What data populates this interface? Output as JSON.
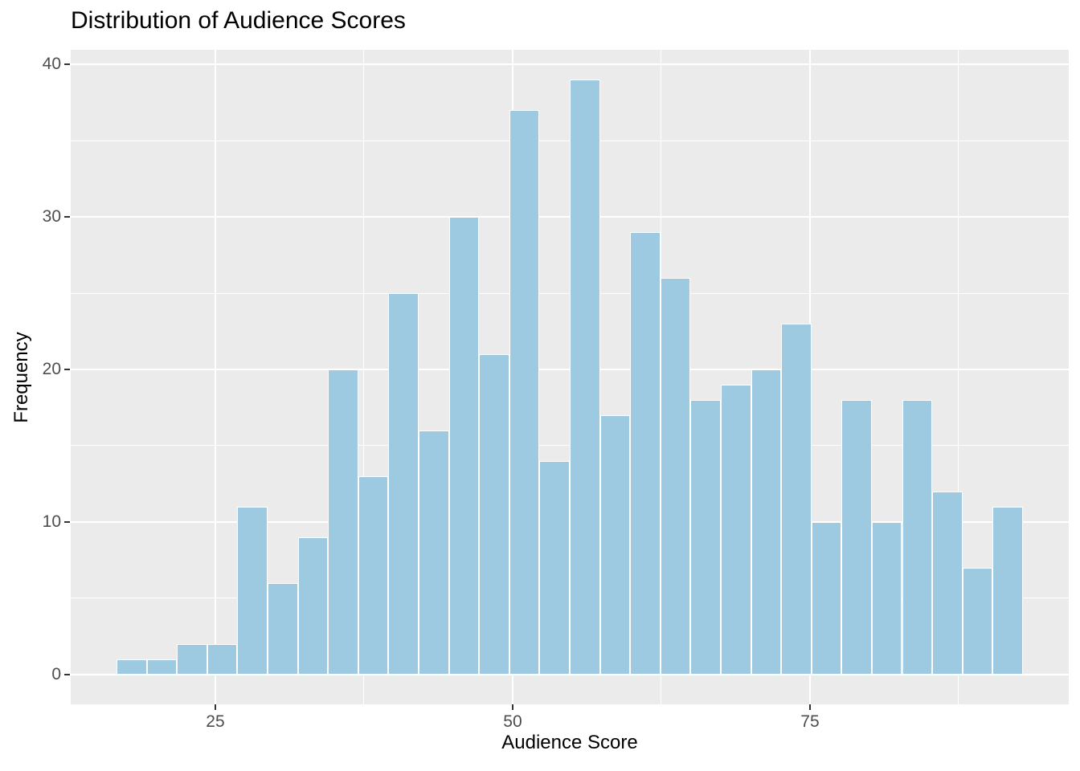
{
  "chart_data": {
    "type": "histogram",
    "title": "Distribution of Audience Scores",
    "xlabel": "Audience Score",
    "ylabel": "Frequency",
    "bins": {
      "start": 16.7,
      "width": 2.54
    },
    "counts": [
      1,
      1,
      2,
      2,
      11,
      6,
      9,
      20,
      13,
      25,
      16,
      30,
      21,
      37,
      14,
      39,
      17,
      29,
      26,
      18,
      19,
      20,
      23,
      10,
      18,
      10,
      18,
      12,
      7,
      11
    ],
    "x_ticks": [
      25,
      50,
      75
    ],
    "y_ticks": [
      0,
      10,
      20,
      30,
      40
    ],
    "x_minor_gridlines": [
      37.5,
      62.5,
      87.5
    ],
    "y_minor_gridlines": [
      5,
      15,
      25,
      35
    ],
    "xlim": [
      12.84,
      96.76
    ],
    "ylim": [
      -1.95,
      40.95
    ],
    "grid": "major+minor",
    "legend": "none",
    "colors": {
      "background": "#FFFFFF",
      "panel_bg": "#EBEBEB",
      "grid": "#FFFFFF",
      "bar_fill": "#9ECAE1",
      "bar_border": "#FFFFFF",
      "tick_label": "#4D4D4D",
      "tick_mark": "#333333",
      "title": "#000000",
      "axis_title": "#000000"
    }
  }
}
